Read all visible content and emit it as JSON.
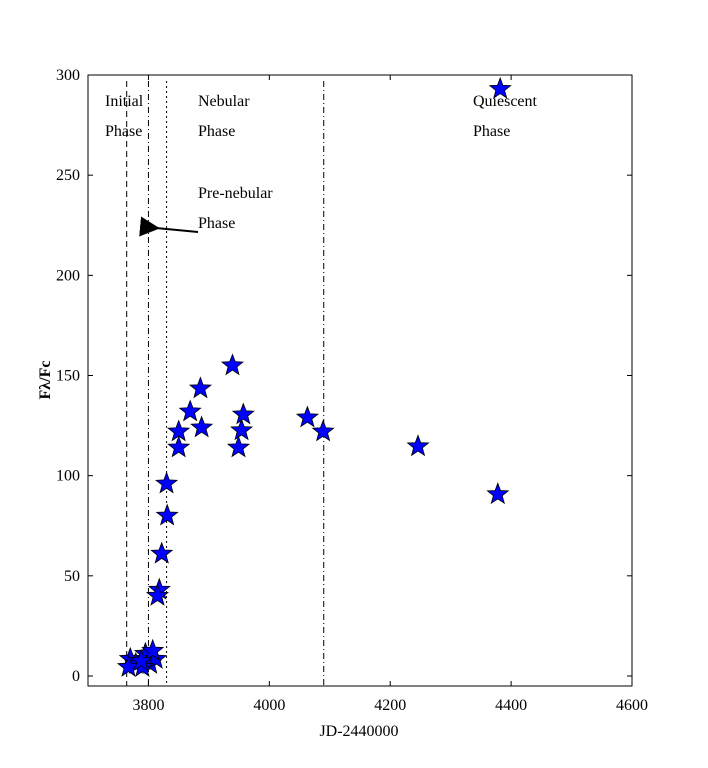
{
  "chart_data": {
    "type": "scatter",
    "xlabel": "JD-2440000",
    "ylabel": "Fλ/Fc",
    "xlim": [
      3700,
      4600
    ],
    "ylim": [
      -5,
      300
    ],
    "xticks": [
      3800,
      4000,
      4200,
      4400,
      4600
    ],
    "yticks": [
      0,
      50,
      100,
      150,
      200,
      250,
      300
    ],
    "series": [
      {
        "color": "#0000ff",
        "x": [
          4382,
          4378,
          4246,
          4089,
          4063,
          3957,
          3954,
          3949,
          3939,
          3888,
          3886,
          3869,
          3850,
          3850,
          3831,
          3830,
          3822,
          3818,
          3815,
          3770,
          3779,
          3795,
          3803,
          3812,
          3790,
          3767,
          3807,
          3788
        ],
        "values": [
          293,
          90.7,
          114.6,
          122,
          129,
          130.5,
          122.6,
          114,
          155,
          124,
          143.5,
          132,
          122,
          114,
          80,
          96,
          61,
          43,
          40,
          8.5,
          6,
          11,
          6,
          8.5,
          4.5,
          4.5,
          12.5,
          7.5
        ]
      }
    ],
    "vlines": [
      {
        "x": 3764,
        "style": "dashed"
      },
      {
        "x": 3800,
        "style": "dashdot"
      },
      {
        "x": 3830,
        "style": "dotted"
      },
      {
        "x": 4090,
        "style": "dashdot"
      }
    ],
    "annotations": [
      {
        "lines": [
          "Initial",
          "Phase"
        ]
      },
      {
        "lines": [
          "Nebular",
          "Phase"
        ]
      },
      {
        "lines": [
          "Pre-nebular",
          "Phase"
        ]
      },
      {
        "lines": [
          "Quiescent",
          "Phase"
        ]
      }
    ]
  }
}
